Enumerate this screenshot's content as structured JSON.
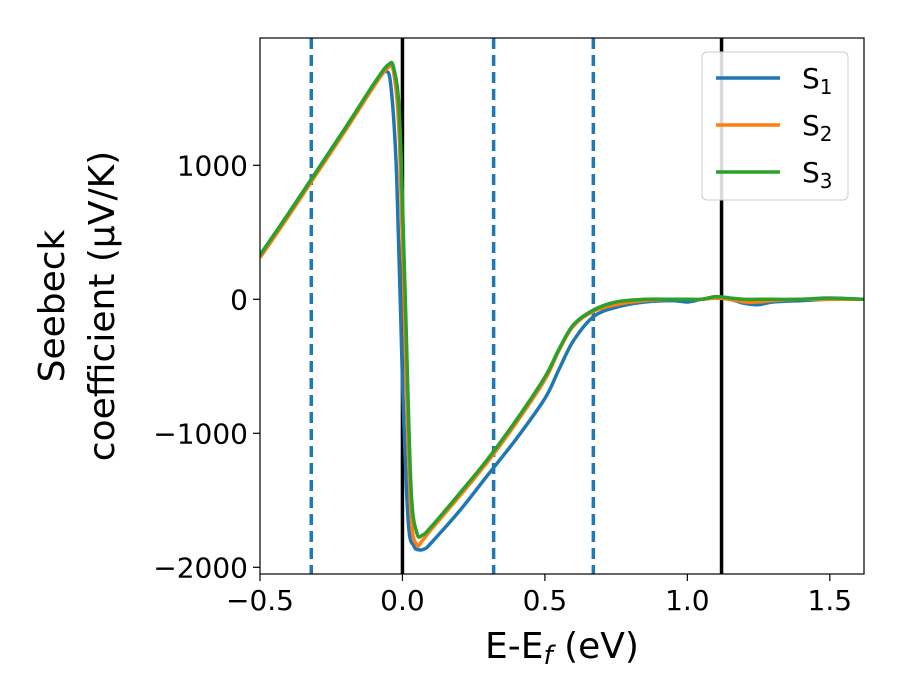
{
  "chart_data": {
    "type": "line",
    "xlabel": "E-E",
    "xlabel_sub": "f",
    "xlabel_unit": " (eV)",
    "ylabel_line1": "Seebeck",
    "ylabel_line2": "coefficient  (μV/K)",
    "xlim": [
      -0.5,
      1.62
    ],
    "ylim": [
      -2050,
      1950
    ],
    "xticks": [
      -0.5,
      0.0,
      0.5,
      1.0,
      1.5
    ],
    "xtick_labels": [
      "−0.5",
      "0.0",
      "0.5",
      "1.0",
      "1.5"
    ],
    "yticks": [
      -2000,
      -1000,
      0,
      1000
    ],
    "ytick_labels": [
      "−2000",
      "−1000",
      "0",
      "1000"
    ],
    "grid": false,
    "legend_position": "top-right",
    "vlines_solid": [
      0.0,
      1.12
    ],
    "vlines_dashed": [
      -0.32,
      0.32,
      0.67
    ],
    "series": [
      {
        "name": "S",
        "sub": "1",
        "color": "#1f77b4",
        "x": [
          -0.5,
          -0.4,
          -0.3,
          -0.2,
          -0.1,
          -0.06,
          -0.04,
          -0.02,
          0.0,
          0.02,
          0.04,
          0.06,
          0.08,
          0.1,
          0.2,
          0.3,
          0.4,
          0.5,
          0.55,
          0.6,
          0.67,
          0.75,
          0.85,
          0.95,
          1.0,
          1.05,
          1.1,
          1.15,
          1.2,
          1.25,
          1.3,
          1.4,
          1.5,
          1.62
        ],
        "y": [
          330,
          640,
          960,
          1280,
          1600,
          1700,
          1580,
          900,
          -600,
          -1650,
          -1840,
          -1870,
          -1860,
          -1820,
          -1580,
          -1310,
          -1040,
          -740,
          -520,
          -310,
          -130,
          -60,
          -20,
          -10,
          -20,
          0,
          10,
          0,
          -30,
          -40,
          -20,
          -10,
          0,
          0
        ]
      },
      {
        "name": "S",
        "sub": "2",
        "color": "#ff7f0e",
        "x": [
          -0.5,
          -0.4,
          -0.3,
          -0.2,
          -0.1,
          -0.05,
          -0.03,
          -0.01,
          0.01,
          0.03,
          0.05,
          0.07,
          0.1,
          0.2,
          0.3,
          0.4,
          0.5,
          0.55,
          0.6,
          0.67,
          0.75,
          0.85,
          0.95,
          1.0,
          1.05,
          1.1,
          1.15,
          1.2,
          1.25,
          1.3,
          1.4,
          1.5,
          1.62
        ],
        "y": [
          310,
          620,
          940,
          1260,
          1590,
          1730,
          1680,
          1150,
          -400,
          -1600,
          -1830,
          -1800,
          -1720,
          -1470,
          -1210,
          -920,
          -600,
          -380,
          -200,
          -90,
          -40,
          -10,
          0,
          0,
          0,
          10,
          0,
          -20,
          -20,
          -10,
          0,
          0,
          0
        ]
      },
      {
        "name": "S",
        "sub": "3",
        "color": "#2ca02c",
        "x": [
          -0.5,
          -0.4,
          -0.3,
          -0.2,
          -0.1,
          -0.05,
          -0.03,
          -0.01,
          0.01,
          0.03,
          0.05,
          0.07,
          0.1,
          0.2,
          0.3,
          0.4,
          0.5,
          0.55,
          0.6,
          0.67,
          0.75,
          0.85,
          0.95,
          1.0,
          1.05,
          1.1,
          1.15,
          1.2,
          1.25,
          1.3,
          1.4,
          1.5,
          1.62
        ],
        "y": [
          330,
          640,
          960,
          1280,
          1610,
          1750,
          1720,
          1350,
          0,
          -1400,
          -1740,
          -1760,
          -1700,
          -1450,
          -1190,
          -900,
          -580,
          -370,
          -190,
          -80,
          -20,
          0,
          0,
          0,
          0,
          20,
          10,
          0,
          0,
          0,
          0,
          10,
          0
        ]
      }
    ]
  }
}
